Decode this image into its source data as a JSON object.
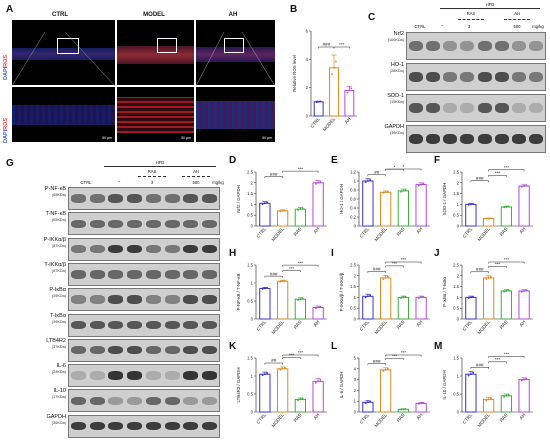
{
  "panel_labels": {
    "A": "A",
    "B": "B",
    "C": "C",
    "D": "D",
    "E": "E",
    "F": "F",
    "G": "G",
    "H": "H",
    "I": "I",
    "J": "J",
    "K": "K",
    "L": "L",
    "M": "M"
  },
  "panelA": {
    "conditions": [
      "CTRL",
      "MODEL",
      "AH"
    ],
    "stain_top": "DAPI/ROS",
    "stain_bottom": "DAPI/ROS",
    "stain_dapi": "DAPI",
    "stain_ros": "ROS",
    "scale_labels": [
      "100 μm",
      "50 μm"
    ]
  },
  "panelC": {
    "hfd": "HFD",
    "ctrl": "CTRL",
    "minus": "–",
    "ras": "RAS",
    "ah": "AH",
    "dose_ras": "3",
    "dose_ah": "500",
    "unit": "mg/kg",
    "blots": [
      {
        "name": "Nrf2",
        "kda": "(100KDa)"
      },
      {
        "name": "HO-1",
        "kda": "(28KDa)"
      },
      {
        "name": "SOD-1",
        "kda": "(15KDa)"
      },
      {
        "name": "GAPDH",
        "kda": "(36KDa)"
      }
    ]
  },
  "panelG": {
    "hfd": "HFD",
    "ctrl": "CTRL",
    "minus": "–",
    "ras": "RAS",
    "ah": "AH",
    "dose_ras": "3",
    "dose_ah": "500",
    "unit": "mg/kg",
    "blots": [
      {
        "name": "P-NF-κB",
        "kda": "(65KDa)"
      },
      {
        "name": "T-NF-κB",
        "kda": "(65KDa)"
      },
      {
        "name": "P-IKKα/β",
        "kda": "(87KDa)"
      },
      {
        "name": "T-IKKα/β",
        "kda": "(87KDa)"
      },
      {
        "name": "P-IκBα",
        "kda": "(39KDa)"
      },
      {
        "name": "T-IκBα",
        "kda": "(39KDa)"
      },
      {
        "name": "LTB4R2",
        "kda": "(37KDa)"
      },
      {
        "name": "IL-6",
        "kda": "(24KDa)"
      },
      {
        "name": "IL-10",
        "kda": "(17KDa)"
      },
      {
        "name": "GAPDH",
        "kda": "(36KDa)"
      }
    ]
  },
  "colors": {
    "CTRL": "#3535c8",
    "MODEL": "#e08a1e",
    "RAS": "#3cae3c",
    "AH": "#b44ad8"
  },
  "chart_data": [
    {
      "id": "B",
      "type": "bar",
      "categories": [
        "CTRL",
        "MODEL",
        "AH"
      ],
      "values": [
        1.0,
        3.4,
        1.8
      ],
      "errors": [
        0.05,
        0.9,
        0.3
      ],
      "ylabel": "Relative ROS level",
      "ylim": [
        0,
        6
      ],
      "yticks": [
        0,
        2,
        4,
        6
      ],
      "sig": [
        {
          "from": 0,
          "to": 1,
          "label": "###",
          "level": 0
        },
        {
          "from": 1,
          "to": 2,
          "label": "***",
          "level": 0
        }
      ]
    },
    {
      "id": "D",
      "type": "bar",
      "categories": [
        "CTRL",
        "MODEL",
        "RAS",
        "AH"
      ],
      "values": [
        1.05,
        0.7,
        0.78,
        2.0
      ],
      "errors": [
        0.08,
        0.05,
        0.08,
        0.1
      ],
      "ylabel": "Nrf2 / GAPDH",
      "ylim": [
        0,
        2.5
      ],
      "yticks": [
        0,
        0.5,
        1.0,
        1.5,
        2.0,
        2.5
      ],
      "sig": [
        {
          "from": 0,
          "to": 1,
          "label": "###",
          "level": 0
        },
        {
          "from": 1,
          "to": 3,
          "label": "***",
          "level": 1
        }
      ]
    },
    {
      "id": "E",
      "type": "bar",
      "categories": [
        "CTRL",
        "MODEL",
        "RAS",
        "AH"
      ],
      "values": [
        1.0,
        0.75,
        0.78,
        0.92
      ],
      "errors": [
        0.05,
        0.03,
        0.04,
        0.04
      ],
      "ylabel": "HO-1 / GAPDH",
      "ylim": [
        0,
        1.2
      ],
      "yticks": [
        0,
        0.2,
        0.4,
        0.6,
        0.8,
        1.0,
        1.2
      ],
      "sig": [
        {
          "from": 0,
          "to": 1,
          "label": "##",
          "level": 0
        },
        {
          "from": 1,
          "to": 2,
          "label": "*",
          "level": 1
        },
        {
          "from": 1,
          "to": 3,
          "label": "*",
          "level": 2
        }
      ]
    },
    {
      "id": "F",
      "type": "bar",
      "categories": [
        "CTRL",
        "MODEL",
        "RAS",
        "AH"
      ],
      "values": [
        1.0,
        0.35,
        0.88,
        1.85
      ],
      "errors": [
        0.04,
        0.02,
        0.04,
        0.06
      ],
      "ylabel": "SOD-1 / GAPDH",
      "ylim": [
        0,
        2.5
      ],
      "yticks": [
        0,
        0.5,
        1.0,
        1.5,
        2.0,
        2.5
      ],
      "sig": [
        {
          "from": 0,
          "to": 1,
          "label": "###",
          "level": 0
        },
        {
          "from": 1,
          "to": 2,
          "label": "***",
          "level": 1
        },
        {
          "from": 1,
          "to": 3,
          "label": "***",
          "level": 2
        }
      ]
    },
    {
      "id": "H",
      "type": "bar",
      "categories": [
        "CTRL",
        "MODEL",
        "RAS",
        "AH"
      ],
      "values": [
        0.85,
        1.05,
        0.55,
        0.32
      ],
      "errors": [
        0.03,
        0.03,
        0.04,
        0.04
      ],
      "ylabel": "P-NF-κB / T-NF-κB",
      "ylim": [
        0,
        1.5
      ],
      "yticks": [
        0,
        0.5,
        1.0,
        1.5
      ],
      "sig": [
        {
          "from": 0,
          "to": 1,
          "label": "###",
          "level": 0
        },
        {
          "from": 1,
          "to": 2,
          "label": "***",
          "level": 1
        },
        {
          "from": 1,
          "to": 3,
          "label": "***",
          "level": 2
        }
      ]
    },
    {
      "id": "I",
      "type": "bar",
      "categories": [
        "CTRL",
        "MODEL",
        "RAS",
        "AH"
      ],
      "values": [
        1.05,
        1.9,
        1.0,
        1.0
      ],
      "errors": [
        0.1,
        0.12,
        0.06,
        0.06
      ],
      "ylabel": "P-IKKα/β / T-IKKα/β",
      "ylim": [
        0,
        2.5
      ],
      "yticks": [
        0,
        0.5,
        1.0,
        1.5,
        2.0,
        2.5
      ],
      "sig": [
        {
          "from": 0,
          "to": 1,
          "label": "###",
          "level": 0
        },
        {
          "from": 1,
          "to": 2,
          "label": "***",
          "level": 1
        },
        {
          "from": 1,
          "to": 3,
          "label": "***",
          "level": 2
        }
      ]
    },
    {
      "id": "J",
      "type": "bar",
      "categories": [
        "CTRL",
        "MODEL",
        "RAS",
        "AH"
      ],
      "values": [
        1.0,
        1.9,
        1.3,
        1.3
      ],
      "errors": [
        0.06,
        0.1,
        0.06,
        0.06
      ],
      "ylabel": "P-IκBα / T-IκBα",
      "ylim": [
        0,
        2.5
      ],
      "yticks": [
        0,
        0.5,
        1.0,
        1.5,
        2.0,
        2.5
      ],
      "sig": [
        {
          "from": 0,
          "to": 1,
          "label": "###",
          "level": 0
        },
        {
          "from": 1,
          "to": 2,
          "label": "***",
          "level": 1
        },
        {
          "from": 1,
          "to": 3,
          "label": "***",
          "level": 2
        }
      ]
    },
    {
      "id": "K",
      "type": "bar",
      "categories": [
        "CTRL",
        "MODEL",
        "RAS",
        "AH"
      ],
      "values": [
        1.05,
        1.2,
        0.35,
        0.85
      ],
      "errors": [
        0.06,
        0.05,
        0.04,
        0.08
      ],
      "ylabel": "LTB4R2 / GAPDH",
      "ylim": [
        0,
        1.5
      ],
      "yticks": [
        0,
        0.5,
        1.0,
        1.5
      ],
      "sig": [
        {
          "from": 0,
          "to": 1,
          "label": "##",
          "level": 0
        },
        {
          "from": 1,
          "to": 2,
          "label": "***",
          "level": 1
        },
        {
          "from": 1,
          "to": 3,
          "label": "***",
          "level": 2
        }
      ]
    },
    {
      "id": "L",
      "type": "bar",
      "categories": [
        "CTRL",
        "MODEL",
        "RAS",
        "AH"
      ],
      "values": [
        0.9,
        3.9,
        0.25,
        0.8
      ],
      "errors": [
        0.15,
        0.2,
        0.05,
        0.1
      ],
      "ylabel": "IL-6 / GAPDH",
      "ylim": [
        0,
        5
      ],
      "yticks": [
        0,
        1,
        2,
        3,
        4,
        5
      ],
      "sig": [
        {
          "from": 0,
          "to": 1,
          "label": "###",
          "level": 0
        },
        {
          "from": 1,
          "to": 2,
          "label": "***",
          "level": 1
        },
        {
          "from": 1,
          "to": 3,
          "label": "***",
          "level": 2
        }
      ]
    },
    {
      "id": "M",
      "type": "bar",
      "categories": [
        "CTRL",
        "MODEL",
        "RAS",
        "AH"
      ],
      "values": [
        1.05,
        0.35,
        0.45,
        0.9
      ],
      "errors": [
        0.08,
        0.06,
        0.05,
        0.05
      ],
      "ylabel": "IL-10 / GAPDH",
      "ylim": [
        0,
        1.5
      ],
      "yticks": [
        0,
        0.5,
        1.0,
        1.5
      ],
      "sig": [
        {
          "from": 0,
          "to": 1,
          "label": "###",
          "level": 0
        },
        {
          "from": 1,
          "to": 2,
          "label": "***",
          "level": 1
        },
        {
          "from": 1,
          "to": 3,
          "label": "***",
          "level": 2
        }
      ]
    }
  ]
}
